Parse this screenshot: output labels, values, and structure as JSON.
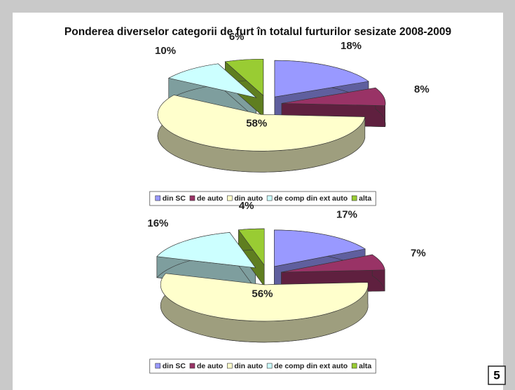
{
  "title": "Ponderea diverselor categorii de furt în totalul furturilor sesizate 2008-2009",
  "page_number": "5",
  "chart_data": [
    {
      "type": "pie",
      "categories": [
        "din SC",
        "de auto",
        "din auto",
        "de comp din ext auto",
        "alta"
      ],
      "values": [
        18,
        8,
        58,
        10,
        6
      ],
      "value_labels": [
        "18%",
        "8%",
        "58%",
        "10%",
        "6%"
      ],
      "colors": [
        "#9999ff",
        "#993366",
        "#ffffcc",
        "#ccffff",
        "#99cc33"
      ]
    },
    {
      "type": "pie",
      "categories": [
        "din SC",
        "de auto",
        "din auto",
        "de comp din ext auto",
        "alta"
      ],
      "values": [
        17,
        7,
        56,
        16,
        4
      ],
      "value_labels": [
        "17%",
        "7%",
        "56%",
        "16%",
        "4%"
      ],
      "colors": [
        "#9999ff",
        "#993366",
        "#ffffcc",
        "#ccffff",
        "#99cc33"
      ]
    }
  ]
}
